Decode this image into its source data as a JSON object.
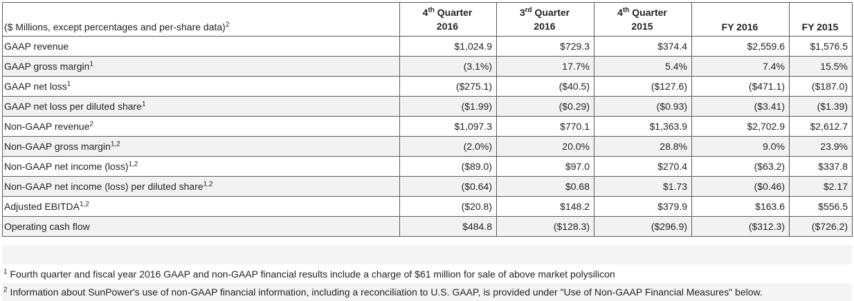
{
  "table": {
    "header": {
      "description": "($ Millions, except percentages and per-share data)",
      "description_sup": "2",
      "columns": [
        {
          "pre": "4",
          "sup": "th",
          "post": " Quarter",
          "year": "2016"
        },
        {
          "pre": "3",
          "sup": "rd",
          "post": " Quarter",
          "year": "2016"
        },
        {
          "pre": "4",
          "sup": "th",
          "post": " Quarter",
          "year": "2015"
        },
        {
          "pre": "",
          "sup": "",
          "post": "",
          "year": "FY 2016"
        },
        {
          "pre": "",
          "sup": "",
          "post": "",
          "year": "FY 2015"
        }
      ]
    },
    "rows": [
      {
        "label": "GAAP revenue",
        "sup": "",
        "values": [
          "$1,024.9",
          "$729.3",
          "$374.4",
          "$2,559.6",
          "$1,576.5"
        ]
      },
      {
        "label": "GAAP gross margin",
        "sup": "1",
        "values": [
          "(3.1%)",
          "17.7%",
          "5.4%",
          "7.4%",
          "15.5%"
        ]
      },
      {
        "label": "GAAP net loss",
        "sup": "1",
        "values": [
          "($275.1)",
          "($40.5)",
          "($127.6)",
          "($471.1)",
          "($187.0)"
        ]
      },
      {
        "label": "GAAP net loss per diluted share",
        "sup": "1",
        "values": [
          "($1.99)",
          "($0.29)",
          "($0.93)",
          "($3.41)",
          "($1.39)"
        ]
      },
      {
        "label": "Non-GAAP revenue",
        "sup": "2",
        "values": [
          "$1,097.3",
          "$770.1",
          "$1,363.9",
          "$2,702.9",
          "$2,612.7"
        ]
      },
      {
        "label": "Non-GAAP gross margin",
        "sup": "1,2",
        "values": [
          "(2.0%)",
          "20.0%",
          "28.8%",
          "9.0%",
          "23.9%"
        ]
      },
      {
        "label": "Non-GAAP net income (loss)",
        "sup": "1,2",
        "values": [
          "($89.0)",
          "$97.0",
          "$270.4",
          "($63.2)",
          "$337.8"
        ]
      },
      {
        "label": "Non-GAAP net income (loss) per diluted share",
        "sup": "1,2",
        "values": [
          "($0.64)",
          "$0.68",
          "$1.73",
          "($0.46)",
          "$2.17"
        ]
      },
      {
        "label": "Adjusted EBITDA",
        "sup": "1,2",
        "values": [
          "($20.8)",
          "$148.2",
          "$379.9",
          "$163.6",
          "$556.5"
        ]
      },
      {
        "label": "Operating cash flow",
        "sup": "",
        "values": [
          "$484.8",
          "($128.3)",
          "($296.9)",
          "($312.3)",
          "($726.2)"
        ]
      }
    ]
  },
  "footnotes": [
    {
      "mark": "1",
      "text": " Fourth quarter and fiscal year 2016 GAAP and non-GAAP financial results include a charge of $61 million for sale of above market polysilicon"
    },
    {
      "mark": "2",
      "text": " Information about SunPower's use of non-GAAP financial information, including a reconciliation to U.S. GAAP, is provided under \"Use of Non-GAAP Financial Measures\" below."
    }
  ]
}
